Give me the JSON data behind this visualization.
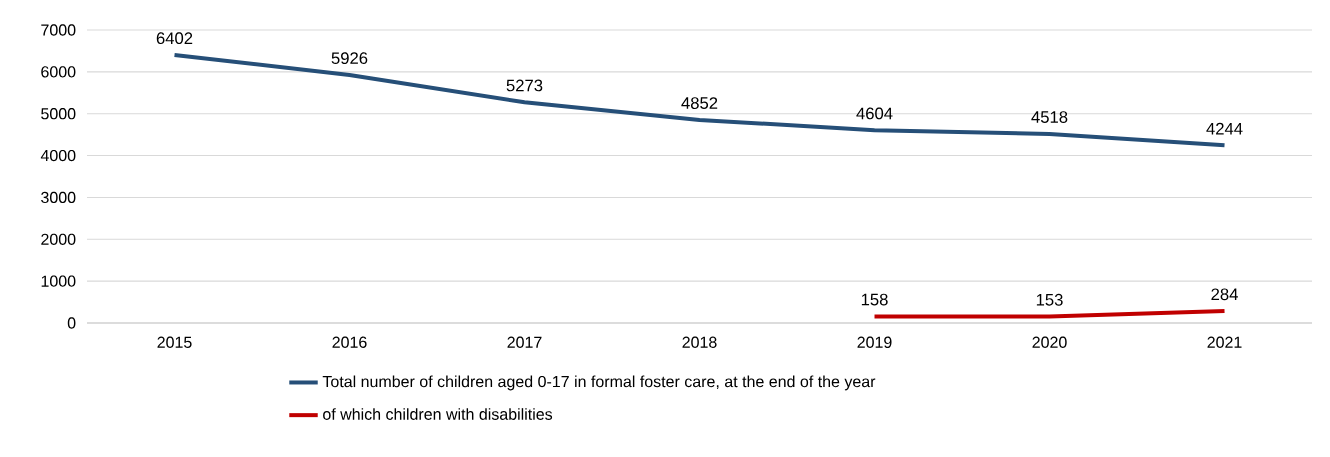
{
  "chart_data": {
    "type": "line",
    "categories": [
      "2015",
      "2016",
      "2017",
      "2018",
      "2019",
      "2020",
      "2021"
    ],
    "series": [
      {
        "name": "Total number of children aged 0-17 in formal foster care, at the end of the year",
        "color": "#264f78",
        "values": [
          6402,
          5926,
          5273,
          4852,
          4604,
          4518,
          4244
        ]
      },
      {
        "name": "of which children with disabilities",
        "color": "#c00000",
        "values": [
          null,
          null,
          null,
          null,
          158,
          153,
          284
        ]
      }
    ],
    "ylim": [
      0,
      7000
    ],
    "yticks": [
      0,
      1000,
      2000,
      3000,
      4000,
      5000,
      6000,
      7000
    ],
    "grid": "y",
    "legend": "bottom",
    "data_labels": true,
    "marker": "none",
    "line_style": "solid"
  }
}
